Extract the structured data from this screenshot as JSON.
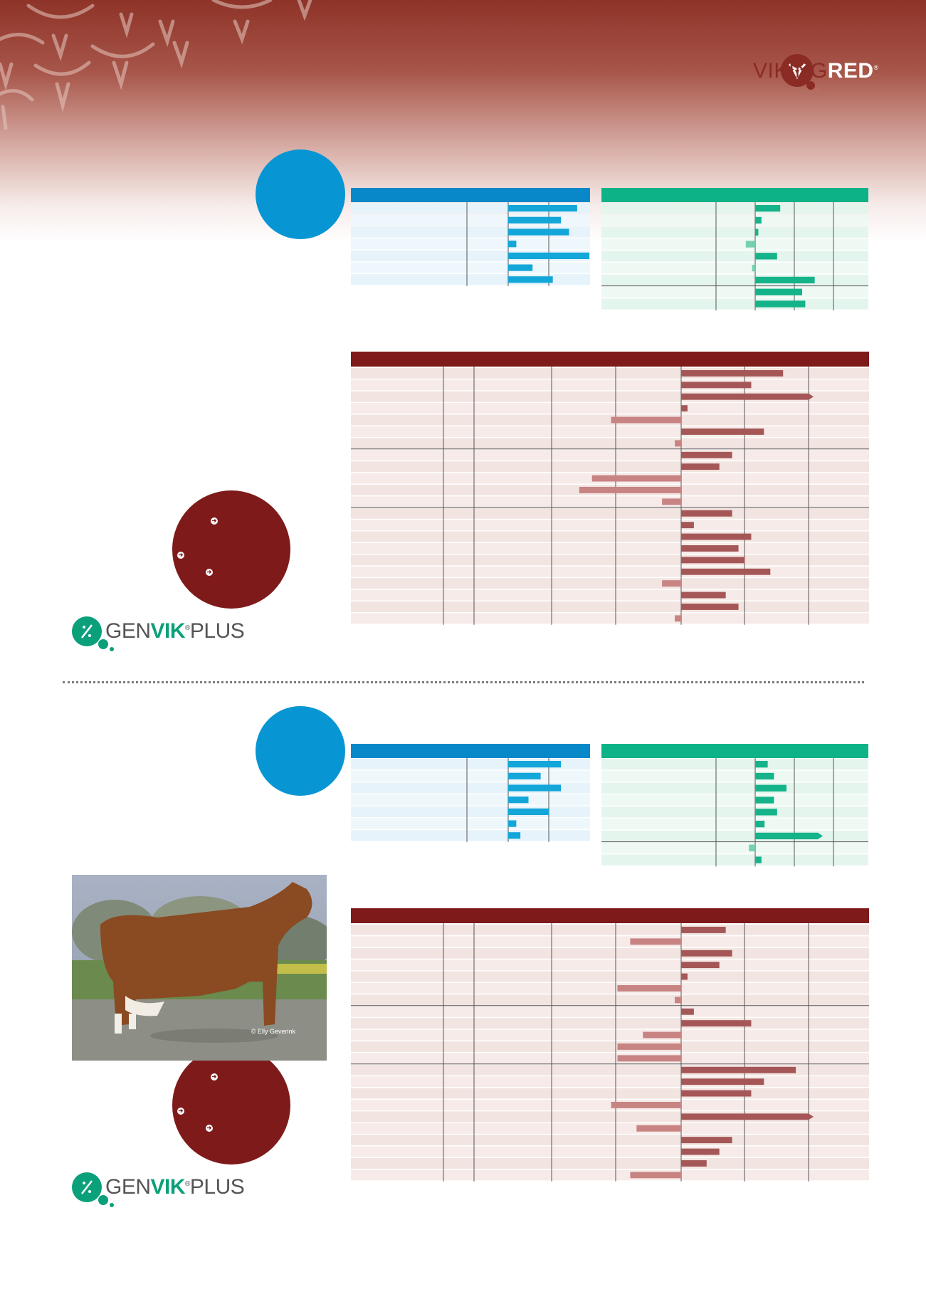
{
  "brand": {
    "name_part1": "VIKING",
    "name_part2": "RED",
    "mark": "®"
  },
  "logo_genvik": {
    "part1": "GEN",
    "part2": "VIK",
    "part3": "PLUS",
    "mark": "®"
  },
  "photo": {
    "credit": "© Elly Geverink"
  },
  "colors": {
    "blue": "#0796d3",
    "green": "#0db386",
    "maroon": "#7f1a1a",
    "red_bar": "#a55757",
    "header_gradient_top": "#8e3328"
  },
  "chart_data": [
    {
      "type": "bar",
      "panel": "top-blue",
      "orientation": "horizontal",
      "values": [
        8.5,
        6.5,
        7.5,
        1,
        10,
        3,
        5.5
      ],
      "xlim": [
        -5,
        10
      ]
    },
    {
      "type": "bar",
      "panel": "top-green",
      "orientation": "horizontal",
      "values": [
        4,
        1,
        0.5,
        -1.5,
        3.5,
        -0.5,
        9.5,
        7.5,
        8
      ],
      "xlim": [
        -5,
        14.5
      ]
    },
    {
      "type": "bar",
      "panel": "top-maroon",
      "orientation": "horizontal",
      "values": [
        8,
        5.5,
        10,
        0.5,
        -5.5,
        6.5,
        -0.5,
        4,
        3,
        -7,
        -8,
        -1.5,
        4,
        1,
        5.5,
        4.5,
        5,
        7,
        -1.5,
        3.5,
        4.5,
        -0.5
      ],
      "xlim": [
        -26,
        15
      ],
      "groups": [
        7,
        5,
        10
      ]
    },
    {
      "type": "bar",
      "panel": "bottom-blue",
      "orientation": "horizontal",
      "values": [
        6.5,
        4,
        6.5,
        2.5,
        5,
        1,
        1.5
      ],
      "xlim": [
        -5,
        10
      ]
    },
    {
      "type": "bar",
      "panel": "bottom-green",
      "orientation": "horizontal",
      "values": [
        2,
        3,
        5,
        3,
        3.5,
        1.5,
        10,
        -1,
        1
      ],
      "xlim": [
        -5,
        14.5
      ]
    },
    {
      "type": "bar",
      "panel": "bottom-maroon",
      "orientation": "horizontal",
      "values": [
        3.5,
        -4,
        4,
        3,
        0.5,
        -5,
        -0.5,
        1,
        5.5,
        -3,
        -5,
        -5,
        9,
        6.5,
        5.5,
        -5.5,
        10,
        -3.5,
        4,
        3,
        2,
        -4
      ],
      "xlim": [
        -26,
        15
      ],
      "groups": [
        7,
        5,
        10
      ]
    }
  ]
}
